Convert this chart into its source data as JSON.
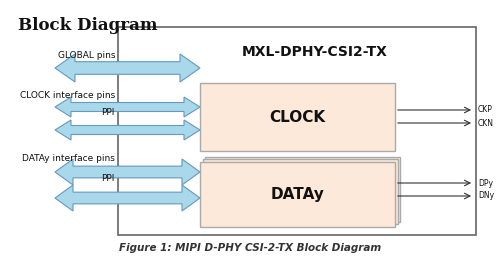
{
  "title": "Block Diagram",
  "figure_caption": "Figure 1: MIPI D-PHY CSI-2-TX Block Diagram",
  "ip_label": "MXL-DPHY-CSI2-TX",
  "clock_label": "CLOCK",
  "data_label": "DATAy",
  "box_facecolor": "#fce9d9",
  "box_edgecolor": "#aaaaaa",
  "outer_facecolor": "#ffffff",
  "outer_edgecolor": "#666666",
  "arrow_facecolor": "#a8d8ea",
  "arrow_edgecolor": "#6699bb",
  "bg_color": "#ffffff",
  "global_label": "GLOBAL pins",
  "clock_iface_label": "CLOCK interface pins",
  "ppi_label1": "PPI",
  "datay_iface_label": "DATAy interface pins",
  "ppi_label2": "PPI",
  "ckp_label": "CKP",
  "ckn_label": "CKN",
  "dpy_label": "DPy",
  "dny_label": "DNy",
  "title_fontsize": 12,
  "ip_fontsize": 10,
  "block_fontsize": 11,
  "label_fontsize": 6.5,
  "caption_fontsize": 7.5,
  "output_label_fontsize": 5.5
}
